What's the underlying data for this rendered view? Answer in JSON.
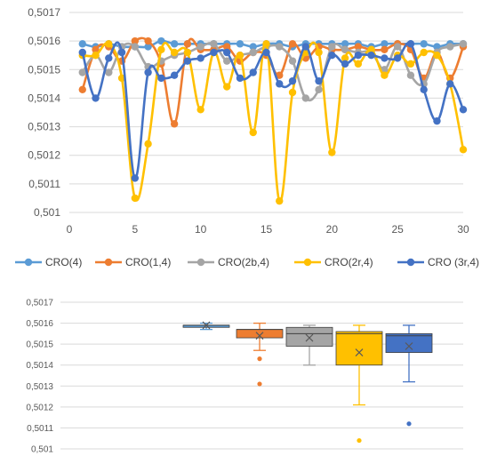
{
  "chart_data": [
    {
      "type": "line",
      "x": [
        1,
        2,
        3,
        4,
        5,
        6,
        7,
        8,
        9,
        10,
        11,
        12,
        13,
        14,
        15,
        16,
        17,
        18,
        19,
        20,
        21,
        22,
        23,
        24,
        25,
        26,
        27,
        28,
        29,
        30
      ],
      "xlim": [
        0,
        30
      ],
      "ylim": [
        0.501,
        0.5017
      ],
      "x_ticks": [
        "0",
        "5",
        "10",
        "15",
        "20",
        "25",
        "30"
      ],
      "y_ticks": [
        "0,501",
        "0,5011",
        "0,5012",
        "0,5013",
        "0,5014",
        "0,5015",
        "0,5016",
        "0,5017"
      ],
      "grid": true,
      "legend_position": "bottom",
      "series": [
        {
          "name": "CRO(4)",
          "color": "#5b9bd5",
          "values": [
            0.50159,
            0.50158,
            0.50159,
            0.50158,
            0.50158,
            0.50158,
            0.5016,
            0.50159,
            0.50159,
            0.50159,
            0.50159,
            0.50159,
            0.50159,
            0.50158,
            0.50159,
            0.50159,
            0.50158,
            0.50159,
            0.50159,
            0.50159,
            0.50159,
            0.50159,
            0.50158,
            0.50159,
            0.50159,
            0.50159,
            0.50159,
            0.50158,
            0.50159,
            0.50159
          ]
        },
        {
          "name": "CRO(1,4)",
          "color": "#ed7d31",
          "values": [
            0.50143,
            0.50157,
            0.50158,
            0.50153,
            0.5016,
            0.5016,
            0.50152,
            0.50131,
            0.50159,
            0.50157,
            0.50157,
            0.50158,
            0.50153,
            0.50156,
            0.50155,
            0.50148,
            0.50159,
            0.50154,
            0.50158,
            0.50157,
            0.50157,
            0.50158,
            0.50157,
            0.50157,
            0.50159,
            0.50157,
            0.50147,
            0.50156,
            0.50147,
            0.50158
          ]
        },
        {
          "name": "CRO(2b,4)",
          "color": "#a5a5a5",
          "values": [
            0.50149,
            0.50155,
            0.50149,
            0.50158,
            0.50158,
            0.50151,
            0.50153,
            0.50155,
            0.50156,
            0.50158,
            0.50159,
            0.50153,
            0.50155,
            0.50156,
            0.50158,
            0.50158,
            0.50153,
            0.5014,
            0.50143,
            0.50158,
            0.50157,
            0.50156,
            0.50156,
            0.5015,
            0.50158,
            0.50148,
            0.50145,
            0.50156,
            0.50158,
            0.50159
          ]
        },
        {
          "name": "CRO(2r,4)",
          "color": "#ffc000",
          "values": [
            0.50155,
            0.50155,
            0.50159,
            0.50147,
            0.50105,
            0.50124,
            0.50157,
            0.50156,
            0.50156,
            0.50136,
            0.50156,
            0.50144,
            0.50155,
            0.50128,
            0.50159,
            0.50104,
            0.50142,
            0.50156,
            0.50156,
            0.50121,
            0.50154,
            0.50152,
            0.50157,
            0.50148,
            0.50155,
            0.50152,
            0.50156,
            0.50155,
            0.50145,
            0.50122
          ]
        },
        {
          "name": "CRO (3r,4)",
          "color": "#4472c4",
          "values": [
            0.50156,
            0.5014,
            0.50154,
            0.50156,
            0.50112,
            0.50149,
            0.50147,
            0.50148,
            0.50153,
            0.50154,
            0.50156,
            0.50156,
            0.50147,
            0.50149,
            0.50156,
            0.50145,
            0.50146,
            0.50158,
            0.50146,
            0.50155,
            0.50152,
            0.50155,
            0.50155,
            0.50154,
            0.50154,
            0.50159,
            0.50143,
            0.50132,
            0.50145,
            0.50136
          ]
        }
      ]
    },
    {
      "type": "box",
      "ylim": [
        0.501,
        0.5017
      ],
      "y_ticks": [
        "0,501",
        "0,5011",
        "0,5012",
        "0,5013",
        "0,5014",
        "0,5015",
        "0,5016",
        "0,5017"
      ],
      "grid": true,
      "series": [
        {
          "name": "CRO(4)",
          "color": "#5b9bd5",
          "min": 0.50157,
          "q1": 0.50158,
          "median": 0.50159,
          "q3": 0.50159,
          "max": 0.5016,
          "mean": 0.50159,
          "outliers": []
        },
        {
          "name": "CRO(1,4)",
          "color": "#ed7d31",
          "min": 0.50147,
          "q1": 0.50153,
          "median": 0.50157,
          "q3": 0.50157,
          "max": 0.5016,
          "mean": 0.50154,
          "outliers": [
            0.50143,
            0.50131
          ]
        },
        {
          "name": "CRO(2b,4)",
          "color": "#a5a5a5",
          "min": 0.5014,
          "q1": 0.50149,
          "median": 0.50155,
          "q3": 0.50158,
          "max": 0.50159,
          "mean": 0.50153,
          "outliers": []
        },
        {
          "name": "CRO(2r,4)",
          "color": "#ffc000",
          "min": 0.50121,
          "q1": 0.5014,
          "median": 0.50155,
          "q3": 0.50156,
          "max": 0.50159,
          "mean": 0.50146,
          "outliers": [
            0.50104
          ]
        },
        {
          "name": "CRO (3r,4)",
          "color": "#4472c4",
          "min": 0.50132,
          "q1": 0.50146,
          "median": 0.50154,
          "q3": 0.50155,
          "max": 0.50159,
          "mean": 0.50149,
          "outliers": [
            0.50112
          ]
        }
      ]
    }
  ]
}
